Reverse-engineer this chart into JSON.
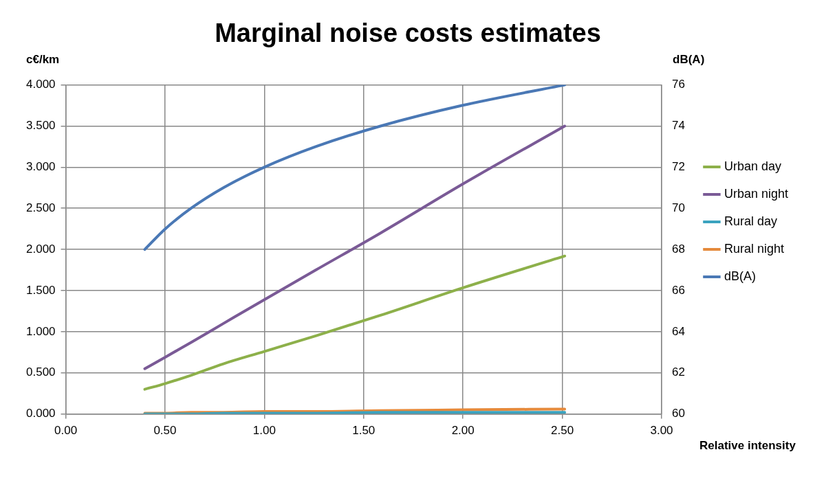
{
  "chart_data": {
    "type": "line",
    "title": "Marginal noise costs estimates",
    "xlabel": "Relative intensity",
    "ylabel": "c€/km",
    "y2label": "dB(A)",
    "x": [
      0.398,
      0.501,
      0.631,
      0.794,
      1.0,
      1.259,
      1.585,
      1.995,
      2.512
    ],
    "series": [
      {
        "name": "Urban day",
        "color": "#8db04a",
        "values": [
          0.3,
          0.37,
          0.47,
          0.61,
          0.76,
          0.95,
          1.2,
          1.53,
          1.92
        ]
      },
      {
        "name": "Urban night",
        "color": "#7a5a96",
        "values": [
          0.55,
          0.69,
          0.87,
          1.1,
          1.39,
          1.75,
          2.2,
          2.79,
          3.5
        ]
      },
      {
        "name": "Rural day",
        "color": "#3ba3bf",
        "values": [
          0.0,
          0.0,
          0.0,
          0.01,
          0.01,
          0.01,
          0.02,
          0.02,
          0.02
        ]
      },
      {
        "name": "Rural night",
        "color": "#e58a3c",
        "values": [
          0.01,
          0.01,
          0.02,
          0.02,
          0.03,
          0.03,
          0.04,
          0.05,
          0.06
        ]
      },
      {
        "name": "dB(A)",
        "color": "#4a78b5",
        "axis": "y2",
        "values": [
          68,
          69,
          70,
          71,
          72,
          73,
          74,
          75,
          76
        ]
      }
    ],
    "xlim": [
      0,
      3
    ],
    "xticks": [
      {
        "value": 0,
        "label": "0.00"
      },
      {
        "value": 0.5,
        "label": "0.50"
      },
      {
        "value": 1,
        "label": "1.00"
      },
      {
        "value": 1.5,
        "label": "1.50"
      },
      {
        "value": 2,
        "label": "2.00"
      },
      {
        "value": 2.5,
        "label": "2.50"
      },
      {
        "value": 3,
        "label": "3.00"
      }
    ],
    "ylim": [
      0,
      4
    ],
    "yticks": [
      {
        "value": 0,
        "label": "0.000"
      },
      {
        "value": 0.5,
        "label": "0.500"
      },
      {
        "value": 1,
        "label": "1.000"
      },
      {
        "value": 1.5,
        "label": "1.500"
      },
      {
        "value": 2,
        "label": "2.000"
      },
      {
        "value": 2.5,
        "label": "2.500"
      },
      {
        "value": 3,
        "label": "3.000"
      },
      {
        "value": 3.5,
        "label": "3.500"
      },
      {
        "value": 4,
        "label": "4.000"
      }
    ],
    "y2lim": [
      60,
      76
    ],
    "y2ticks": [
      60,
      62,
      64,
      66,
      68,
      70,
      72,
      74,
      76
    ],
    "grid": true,
    "legend": "right",
    "marker": "none",
    "line_style": "solid"
  }
}
